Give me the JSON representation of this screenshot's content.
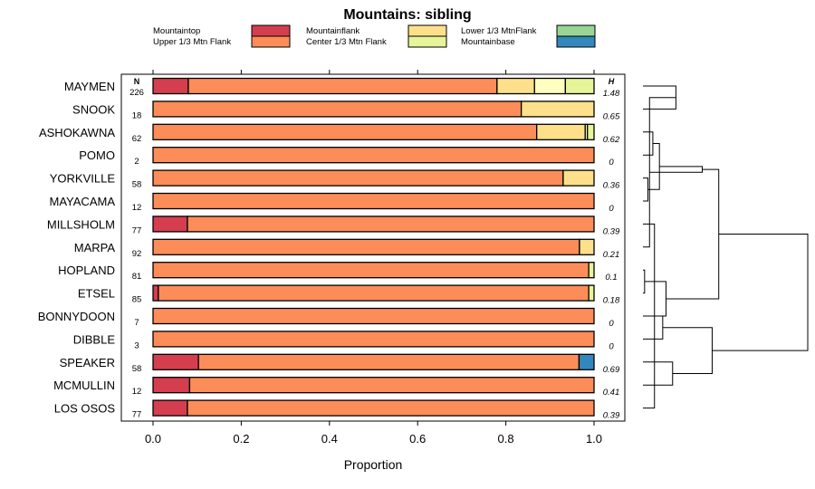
{
  "chart_data": {
    "type": "bar",
    "stacked": true,
    "orientation": "horizontal",
    "title": "Mountains: sibling",
    "xlabel": "Proportion",
    "ylabel": "",
    "xlim": [
      0,
      1
    ],
    "xticks": [
      "0.0",
      "0.2",
      "0.4",
      "0.6",
      "0.8",
      "1.0"
    ],
    "n_header": "N",
    "h_header": "H",
    "legend_position": "top",
    "segments": [
      {
        "name": "Mountaintop",
        "color": "#d53e4f"
      },
      {
        "name": "Upper 1/3 Mtn Flank",
        "color": "#fc8d59"
      },
      {
        "name": "Mountainflank",
        "color": "#fee08b"
      },
      {
        "name": "Center 1/3 Mtn Flank",
        "color": "#ffffbf"
      },
      {
        "name": "Lower 1/3 MtnFlank",
        "color": "#e6f598"
      },
      {
        "name": "Mountainbase",
        "color": "#99d594"
      },
      {
        "name": "",
        "color": "#3288bd"
      }
    ],
    "legend": [
      {
        "label": "Mountaintop",
        "color": "#d53e4f"
      },
      {
        "label": "Upper 1/3 Mtn Flank",
        "color": "#fc8d59"
      },
      {
        "label": "Mountainflank",
        "color": "#fee08b"
      },
      {
        "label": "Center 1/3 Mtn Flank",
        "color": "#e6f598"
      },
      {
        "label": "Lower 1/3 MtnFlank",
        "color": "#99d594"
      },
      {
        "label": "Mountainbase",
        "color": "#3288bd"
      }
    ],
    "categories": [
      "MAYMEN",
      "SNOOK",
      "ASHOKAWNA",
      "POMO",
      "YORKVILLE",
      "MAYACAMA",
      "MILLSHOLM",
      "MARPA",
      "HOPLAND",
      "ETSEL",
      "BONNYDOON",
      "DIBBLE",
      "SPEAKER",
      "MCMULLIN",
      "LOS OSOS"
    ],
    "rows": [
      {
        "name": "MAYMEN",
        "n": "226",
        "h": "1.48",
        "values": [
          0.08,
          0.7,
          0.085,
          0.07,
          0.065,
          0,
          0
        ]
      },
      {
        "name": "SNOOK",
        "n": "18",
        "h": "0.65",
        "values": [
          0,
          0.835,
          0.165,
          0,
          0,
          0,
          0
        ]
      },
      {
        "name": "ASHOKAWNA",
        "n": "62",
        "h": "0.62",
        "values": [
          0,
          0.87,
          0.11,
          0.005,
          0.015,
          0,
          0
        ]
      },
      {
        "name": "POMO",
        "n": "2",
        "h": "0",
        "values": [
          0,
          1,
          0,
          0,
          0,
          0,
          0
        ]
      },
      {
        "name": "YORKVILLE",
        "n": "58",
        "h": "0.36",
        "values": [
          0,
          0.93,
          0.07,
          0,
          0,
          0,
          0
        ]
      },
      {
        "name": "MAYACAMA",
        "n": "12",
        "h": "0",
        "values": [
          0,
          1,
          0,
          0,
          0,
          0,
          0
        ]
      },
      {
        "name": "MILLSHOLM",
        "n": "77",
        "h": "0.39",
        "values": [
          0.078,
          0.922,
          0,
          0,
          0,
          0,
          0
        ]
      },
      {
        "name": "MARPA",
        "n": "92",
        "h": "0.21",
        "values": [
          0,
          0.967,
          0.033,
          0,
          0,
          0,
          0
        ]
      },
      {
        "name": "HOPLAND",
        "n": "81",
        "h": "0.1",
        "values": [
          0,
          0.988,
          0,
          0,
          0.012,
          0,
          0
        ]
      },
      {
        "name": "ETSEL",
        "n": "85",
        "h": "0.18",
        "values": [
          0.012,
          0.976,
          0,
          0,
          0.012,
          0,
          0
        ]
      },
      {
        "name": "BONNYDOON",
        "n": "7",
        "h": "0",
        "values": [
          0,
          1,
          0,
          0,
          0,
          0,
          0
        ]
      },
      {
        "name": "DIBBLE",
        "n": "3",
        "h": "0",
        "values": [
          0,
          1,
          0,
          0,
          0,
          0,
          0
        ]
      },
      {
        "name": "SPEAKER",
        "n": "58",
        "h": "0.69",
        "values": [
          0.103,
          0.863,
          0,
          0,
          0,
          0,
          0.034
        ]
      },
      {
        "name": "MCMULLIN",
        "n": "12",
        "h": "0.41",
        "values": [
          0.083,
          0.917,
          0,
          0,
          0,
          0,
          0
        ]
      },
      {
        "name": "LOS OSOS",
        "n": "77",
        "h": "0.39",
        "values": [
          0.078,
          0.922,
          0,
          0,
          0,
          0,
          0
        ]
      }
    ],
    "dendrogram": [
      [
        1,
        2
      ],
      [
        5,
        6
      ],
      [
        3,
        4
      ],
      [
        15,
        7
      ],
      [
        9,
        10
      ],
      [
        8,
        16
      ],
      [
        17,
        18
      ],
      [
        13,
        14
      ],
      [
        11,
        12
      ],
      [
        19,
        20
      ],
      [
        21,
        22
      ],
      [
        23,
        24
      ],
      [
        25,
        26
      ],
      [
        27,
        28
      ]
    ],
    "dendrogram_heights": [
      0.2,
      0.03,
      0.06,
      0.07,
      0.01,
      0.04,
      0.1,
      0.18,
      0.12,
      0.14,
      0.36,
      0.42,
      0.46,
      1.0
    ],
    "text_color": "#000000"
  }
}
